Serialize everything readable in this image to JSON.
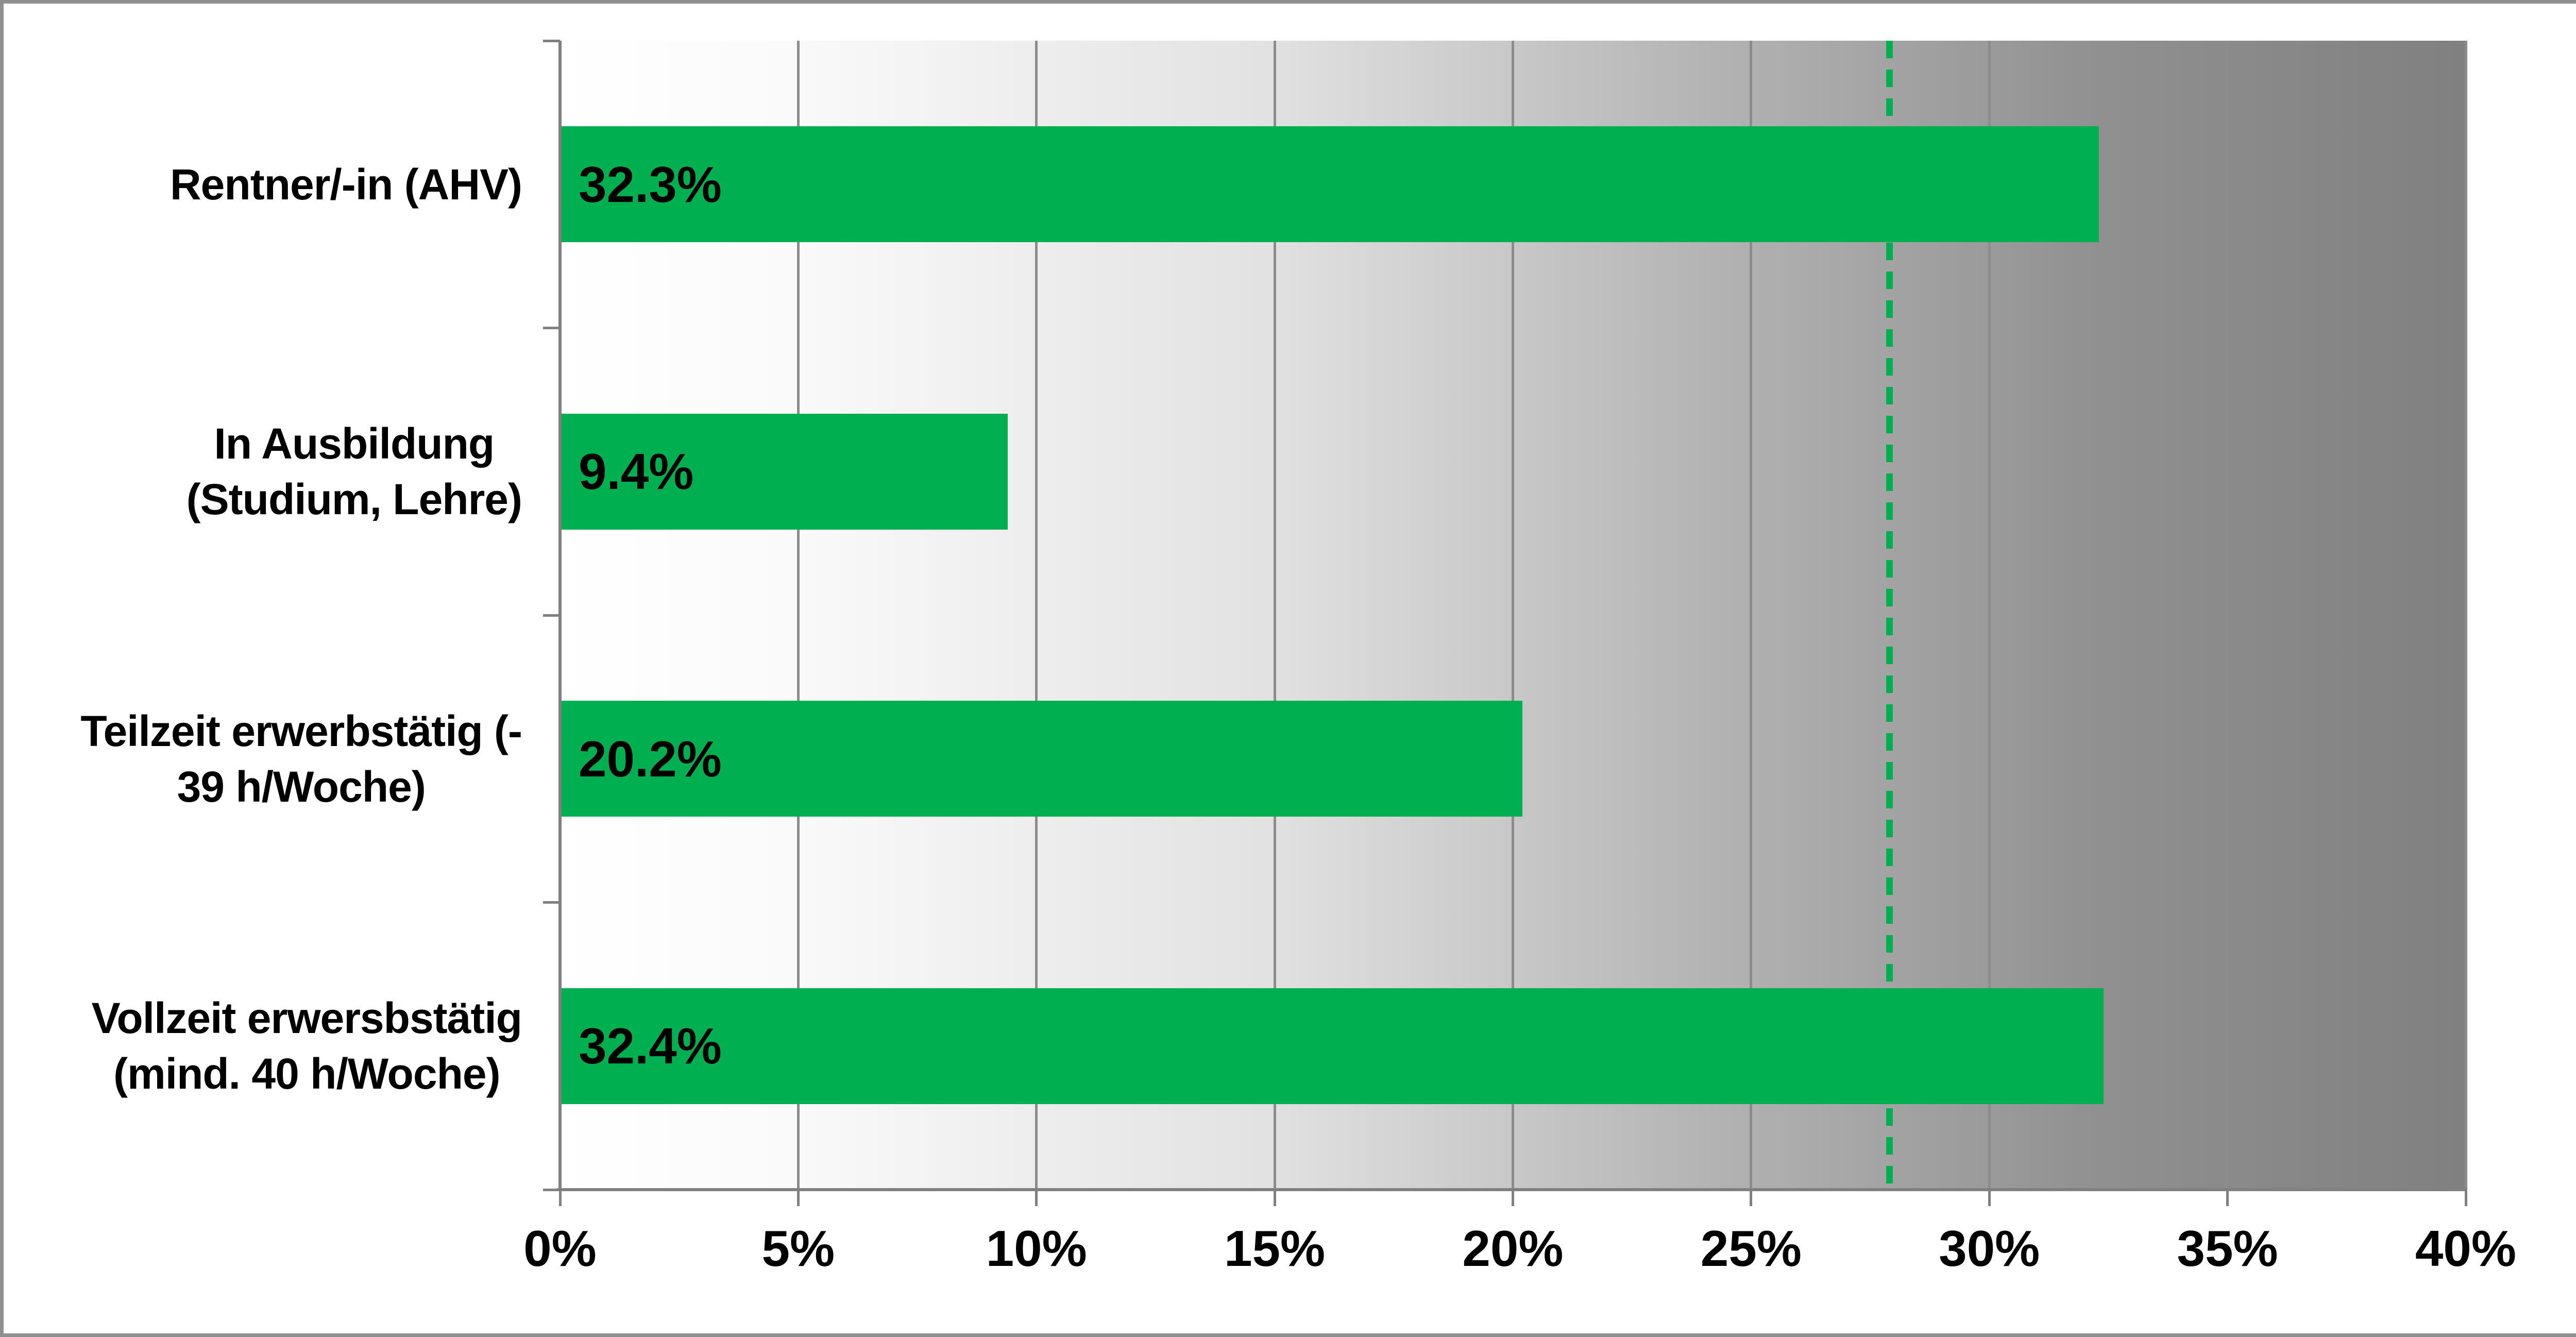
{
  "chart_data": {
    "type": "bar",
    "orientation": "horizontal",
    "title": "",
    "xlabel": "",
    "ylabel": "",
    "legend": false,
    "grid": true,
    "categories": [
      "Rentner/-in (AHV)",
      "In Ausbildung\n(Studium, Lehre)",
      "Teilzeit erwerbstätig (-\n39 h/Woche)",
      "Vollzeit erwersbstätig\n(mind. 40 h/Woche)"
    ],
    "values": [
      32.3,
      9.4,
      20.2,
      32.4
    ],
    "value_labels": [
      "32.3%",
      "9.4%",
      "20.2%",
      "32.4%"
    ],
    "x_axis": {
      "min": 0,
      "max": 40,
      "tick_step": 5,
      "tick_labels": [
        "0%",
        "5%",
        "10%",
        "15%",
        "20%",
        "25%",
        "30%",
        "35%",
        "40%"
      ]
    },
    "reference_line": {
      "value": 27.9,
      "style": "dashed",
      "color": "#00B050"
    },
    "colors": {
      "bar": "#00B050",
      "axis": "#808080",
      "gridline": "#8C8C8C",
      "text": "#000000",
      "plot_gradient_left": "#FFFFFF",
      "plot_gradient_right": "#808080",
      "outer_border": "#909090"
    }
  }
}
